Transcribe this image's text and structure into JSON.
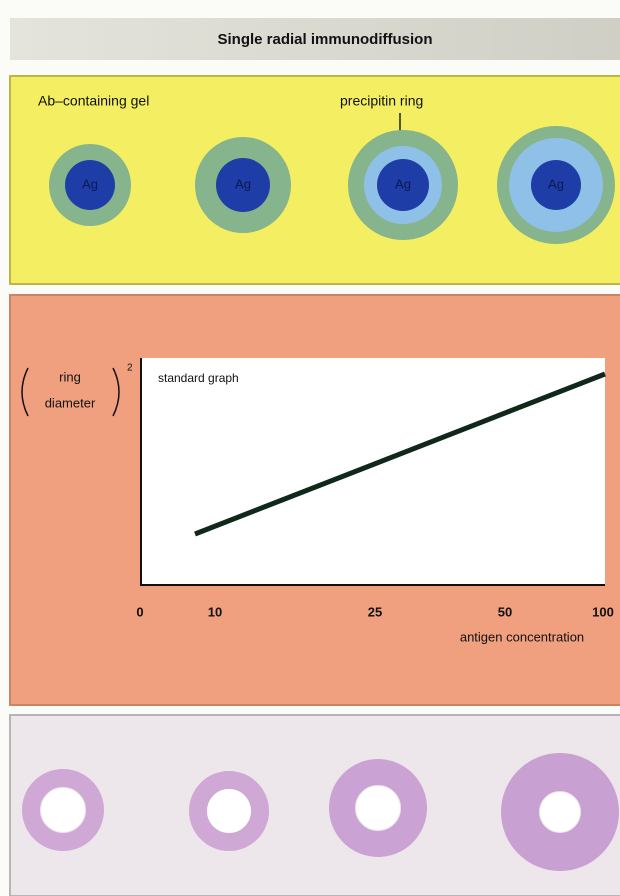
{
  "header": {
    "title": "Single radial immunodiffusion"
  },
  "gel_panel": {
    "gel_label": "Ab–containing gel",
    "ring_label": "precipitin ring",
    "wells": [
      "Ag",
      "Ag",
      "Ag",
      "Ag"
    ]
  },
  "graph": {
    "y_label": {
      "line1": "ring",
      "line2": "diameter",
      "exponent": "2"
    },
    "title": "standard graph",
    "x_ticks": [
      0,
      10,
      25,
      50,
      100
    ],
    "x_label": "antigen concentration"
  }
}
